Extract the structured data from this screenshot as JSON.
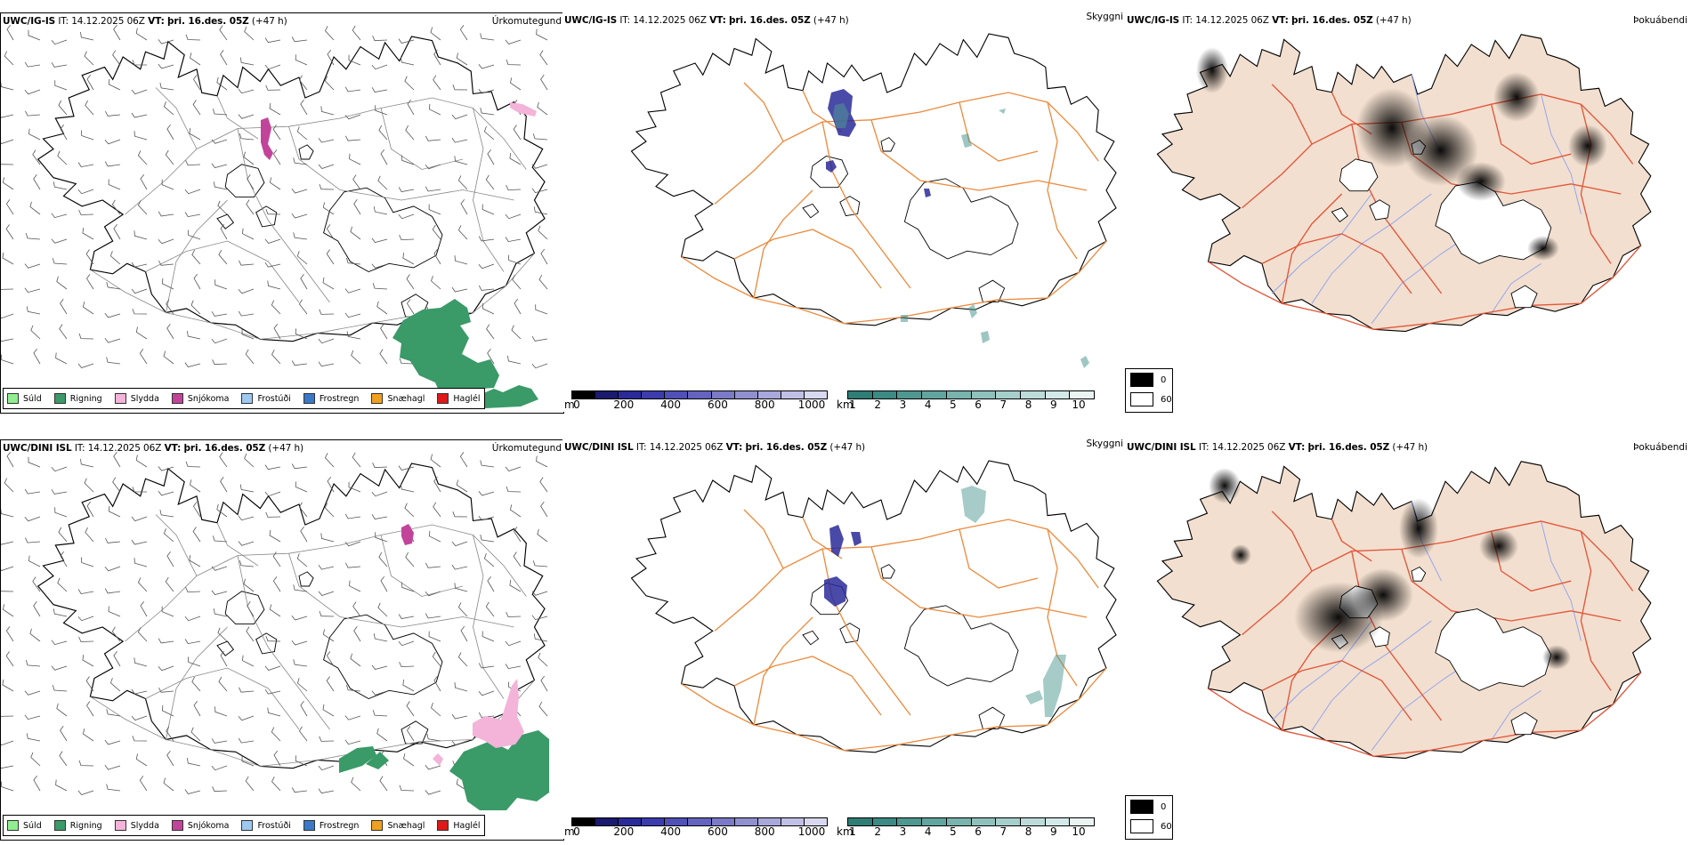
{
  "rows": [
    {
      "model": "UWC/IG-IS",
      "it_label": "IT:",
      "it_value": "14.12.2025 06Z",
      "vt_label": "VT:",
      "vt_value": "þri. 16.des. 05Z",
      "lead": "(+47 h)"
    },
    {
      "model": "UWC/DINI ISL",
      "it_label": "IT:",
      "it_value": "14.12.2025 06Z",
      "vt_label": "VT:",
      "vt_value": "þri. 16.des. 05Z",
      "lead": "(+47 h)"
    }
  ],
  "panels": {
    "precip": {
      "tag": "Úrkomutegund"
    },
    "vis": {
      "tag": "Skyggni"
    },
    "fog": {
      "tag": "Þokuábendi"
    }
  },
  "precip_legend": [
    {
      "label": "Súld",
      "color": "#90ee90"
    },
    {
      "label": "Rigning",
      "color": "#3a9a68"
    },
    {
      "label": "Slydda",
      "color": "#f4b3d8"
    },
    {
      "label": "Snjókoma",
      "color": "#c2449a"
    },
    {
      "label": "Frostúði",
      "color": "#9ec8f0"
    },
    {
      "label": "Frostregn",
      "color": "#3a78c8"
    },
    {
      "label": "Snæhagl",
      "color": "#f0a020"
    },
    {
      "label": "Haglél",
      "color": "#e01818"
    }
  ],
  "ceiling_bar": {
    "unit": "m",
    "ticks": [
      "0",
      "200",
      "400",
      "600",
      "800",
      "1000"
    ],
    "colors": [
      "#000000",
      "#1a1a6e",
      "#2a2a9a",
      "#3c3cae",
      "#5050b8",
      "#6464c0",
      "#7a7ac8",
      "#9090d0",
      "#a8a8dc",
      "#c0c0e6",
      "#d8d8f0"
    ]
  },
  "vis_bar": {
    "unit": "km",
    "ticks": [
      "1",
      "2",
      "3",
      "4",
      "5",
      "6",
      "7",
      "8",
      "9",
      "10"
    ],
    "colors": [
      "#2e7d76",
      "#3c8a84",
      "#4e9891",
      "#62a59f",
      "#78b3ad",
      "#8fc1bc",
      "#a6cfcb",
      "#bddcd9",
      "#d3e9e7",
      "#e9f4f3"
    ]
  },
  "fog_legend": {
    "high": "0",
    "low": "60"
  },
  "colors": {
    "land_fog": "#f2dfcf",
    "roads_orange": "#ec8a3c",
    "roads_red": "#e2563a",
    "rivers": "#8aa0f0",
    "rain": "#3a9a68",
    "snow": "#c2449a",
    "sleet": "#f4b3d8"
  }
}
